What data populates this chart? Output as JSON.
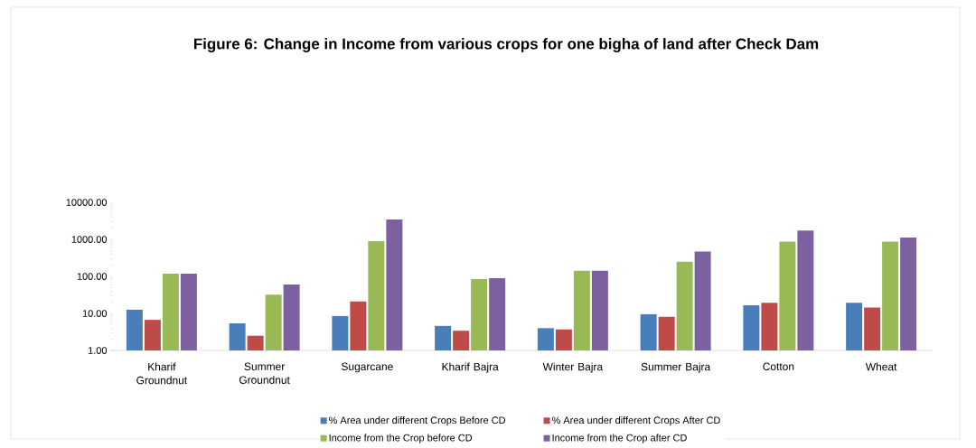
{
  "chart_data": {
    "type": "bar",
    "title": "Figure 6: Change in Income from various crops for one bigha of land after Check Dam",
    "categories": [
      "Kharif Groundnut",
      "Summer Groundnut",
      "Sugarcane",
      "Kharif Bajra",
      "Winter Bajra",
      "Summer Bajra",
      "Cotton",
      "Wheat"
    ],
    "series": [
      {
        "name": "% Area under different Crops  Before CD",
        "color": "#4a7ebb",
        "values": [
          12.6,
          5.4,
          8.5,
          4.6,
          4.0,
          9.5,
          16.6,
          19.4
        ]
      },
      {
        "name": "% Area under different Crops  After CD",
        "color": "#be4b48",
        "values": [
          6.7,
          2.5,
          21,
          3.4,
          3.7,
          8.1,
          19.4,
          14.4
        ]
      },
      {
        "name": "Income from the Crop before CD",
        "color": "#98b954",
        "values": [
          118,
          32,
          890,
          85,
          142,
          250,
          870,
          870
        ]
      },
      {
        "name": "Income from the Crop after CD",
        "color": "#7d60a0",
        "values": [
          118,
          60,
          3450,
          90,
          142,
          470,
          1730,
          1120
        ]
      }
    ],
    "log": "y",
    "ylim": [
      1,
      10000
    ],
    "yticks": [
      {
        "value": 1,
        "label": "1.00"
      },
      {
        "value": 10,
        "label": "10.00"
      },
      {
        "value": 100,
        "label": "100.00"
      },
      {
        "value": 1000,
        "label": "1000.00"
      },
      {
        "value": 10000,
        "label": "10000.00"
      }
    ],
    "grid": false,
    "legend": "bottom"
  }
}
